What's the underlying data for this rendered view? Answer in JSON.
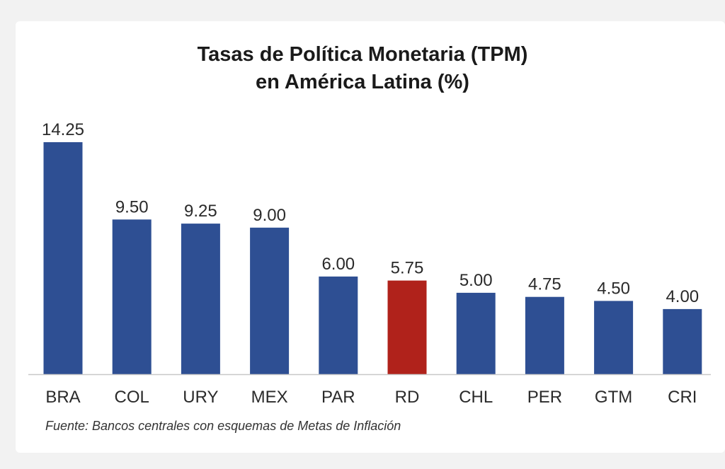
{
  "chart_data": {
    "type": "bar",
    "title_line1": "Tasas de Política Monetaria (TPM)",
    "title_line2": "en América Latina (%)",
    "categories": [
      "BRA",
      "COL",
      "URY",
      "MEX",
      "PAR",
      "RD",
      "CHL",
      "PER",
      "GTM",
      "CRI"
    ],
    "values": [
      14.25,
      9.5,
      9.25,
      9.0,
      6.0,
      5.75,
      5.0,
      4.75,
      4.5,
      4.0
    ],
    "value_labels": [
      "14.25",
      "9.50",
      "9.25",
      "9.00",
      "6.00",
      "5.75",
      "5.00",
      "4.75",
      "4.50",
      "4.00"
    ],
    "highlight_category": "RD",
    "xlabel": "",
    "ylabel": "",
    "ylim": [
      0,
      14.25
    ],
    "grid": false,
    "legend": "none"
  },
  "colors": {
    "bar": "#2e4f93",
    "highlight": "#b0221b",
    "axis": "#c8c8c8",
    "text": "#2a2a2a"
  },
  "source": "Fuente: Bancos centrales con esquemas de Metas de Inflación"
}
